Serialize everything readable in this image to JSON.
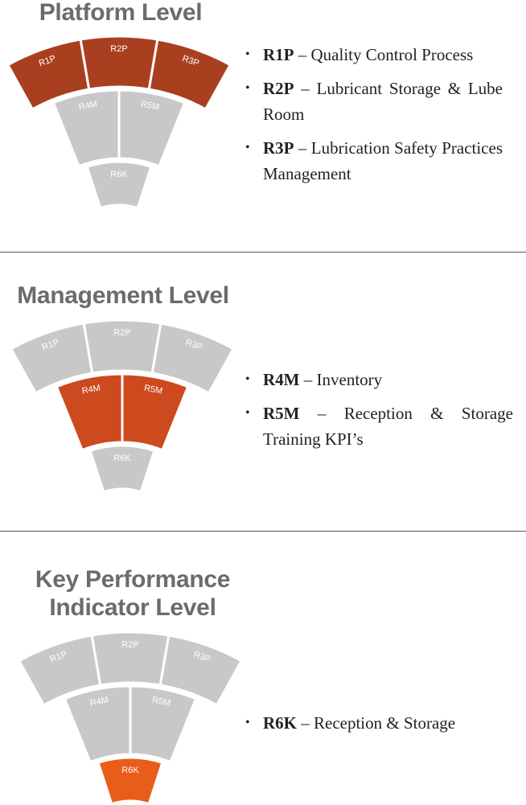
{
  "sections": [
    {
      "title": "Platform Level",
      "segments": [
        "R1P",
        "R2P",
        "R3P",
        "R4M",
        "R5M",
        "R6K"
      ],
      "highlighted": [
        0,
        1,
        2
      ],
      "highlight_color": "#a8401f",
      "bullets": [
        {
          "code": "R1P",
          "text": "– Quality Control Process"
        },
        {
          "code": "R2P",
          "text": "– Lubricant Storage & Lube Room"
        },
        {
          "code": "R3P",
          "text": "– Lubrication Safety Practices Management"
        }
      ]
    },
    {
      "title": "Management Level",
      "segments": [
        "R1P",
        "R2P",
        "R3P",
        "R4M",
        "R5M",
        "R6K"
      ],
      "highlighted": [
        3,
        4
      ],
      "highlight_color": "#cc4a1e",
      "bullets": [
        {
          "code": "R4M",
          "text": "– Inventory"
        },
        {
          "code": "R5M",
          "text": "– Reception & Storage Training KPI’s"
        }
      ]
    },
    {
      "title": "Key Performance Indicator Level",
      "segments": [
        "R1P",
        "R2P",
        "R3P",
        "R4M",
        "R5M",
        "R6K"
      ],
      "highlighted": [
        5
      ],
      "highlight_color": "#e85d1a",
      "bullets": [
        {
          "code": "R6K",
          "text": "– Reception & Storage"
        }
      ]
    }
  ]
}
